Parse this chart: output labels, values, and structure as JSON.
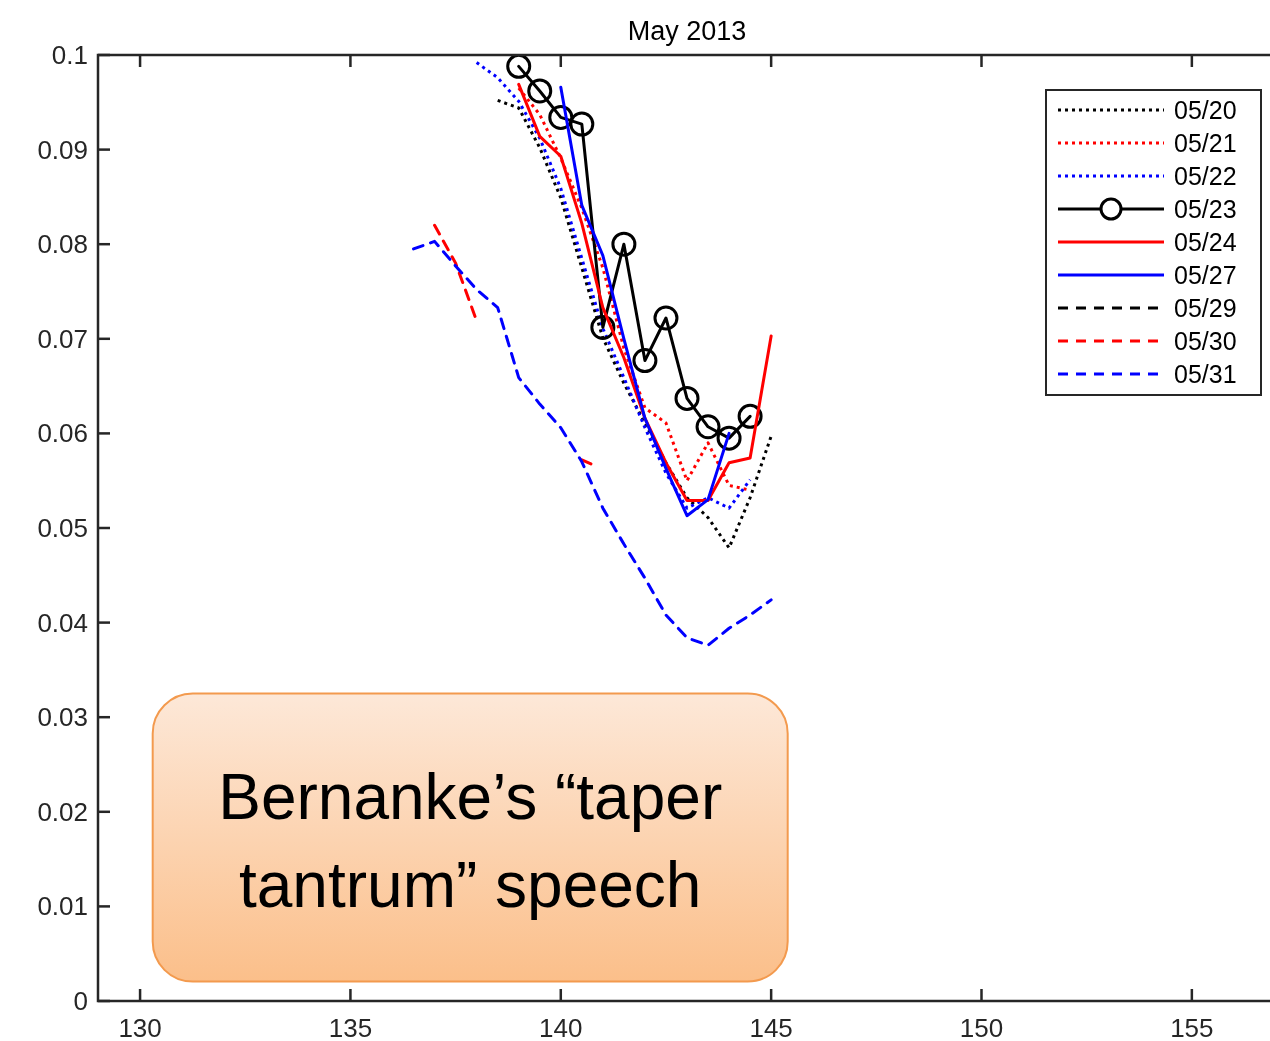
{
  "chart_data": {
    "type": "line",
    "title": "May 2013",
    "xlim": [
      129,
      157
    ],
    "ylim": [
      0,
      0.1
    ],
    "xticks": [
      130,
      135,
      140,
      145,
      150,
      155
    ],
    "yticks": [
      0,
      0.01,
      0.02,
      0.03,
      0.04,
      0.05,
      0.06,
      0.07,
      0.08,
      0.09,
      0.1
    ],
    "grid": false,
    "legend": "top right",
    "annotations": [
      "Bernanke’s “taper tantrum” speech"
    ],
    "series": [
      {
        "name": "05/20",
        "color": "#000000",
        "line_style": "dotted",
        "marker": "none",
        "x": [
          138.5,
          139,
          139.5,
          140,
          140.5,
          141,
          141.5,
          142,
          142.5,
          143,
          143.5,
          144,
          144.5,
          145
        ],
        "values": [
          0.0952,
          0.0944,
          0.0902,
          0.0849,
          0.0775,
          0.0701,
          0.0653,
          0.0611,
          0.0569,
          0.0532,
          0.0511,
          0.0479,
          0.0532,
          0.0597
        ]
      },
      {
        "name": "05/21",
        "color": "#ff0000",
        "line_style": "dotted",
        "marker": "none",
        "x": [
          139,
          139.5,
          140,
          140.5,
          141,
          141.5,
          142,
          142.5,
          143,
          143.5,
          144,
          144.5
        ],
        "values": [
          0.0965,
          0.0937,
          0.0891,
          0.0838,
          0.0775,
          0.069,
          0.0627,
          0.0611,
          0.055,
          0.059,
          0.0545,
          0.054
        ]
      },
      {
        "name": "05/22",
        "color": "#0000ff",
        "line_style": "dotted",
        "marker": "none",
        "x": [
          138,
          138.5,
          139,
          139.5,
          140,
          140.5,
          141,
          141.5,
          142,
          142.5,
          143,
          143.5,
          144,
          144.5
        ],
        "values": [
          0.0992,
          0.0976,
          0.0951,
          0.0912,
          0.0859,
          0.0785,
          0.0711,
          0.0659,
          0.0606,
          0.0558,
          0.0521,
          0.0532,
          0.0521,
          0.0551
        ]
      },
      {
        "name": "05/23",
        "color": "#000000",
        "line_style": "solid",
        "marker": "circle",
        "x": [
          139,
          139.5,
          140,
          140.5,
          141,
          141.5,
          142,
          142.5,
          143,
          143.5,
          144,
          144.5
        ],
        "values": [
          0.0988,
          0.0962,
          0.0934,
          0.0927,
          0.0712,
          0.08,
          0.0677,
          0.0722,
          0.0637,
          0.0607,
          0.0595,
          0.0618
        ]
      },
      {
        "name": "05/24",
        "color": "#ff0000",
        "line_style": "solid",
        "marker": "none",
        "x": [
          139,
          139.5,
          140,
          140.5,
          141,
          141.5,
          142,
          142.5,
          143,
          143.5,
          144,
          144.5,
          145
        ],
        "values": [
          0.0969,
          0.0914,
          0.0893,
          0.0822,
          0.0733,
          0.068,
          0.0616,
          0.0569,
          0.0529,
          0.0529,
          0.0569,
          0.0574,
          0.0703
        ]
      },
      {
        "name": "05/27",
        "color": "#0000ff",
        "line_style": "solid",
        "marker": "none",
        "x": [
          140,
          140.5,
          141,
          141.5,
          142,
          142.5,
          143,
          143.5,
          144
        ],
        "values": [
          0.0966,
          0.0841,
          0.0788,
          0.07,
          0.0616,
          0.0563,
          0.0513,
          0.053,
          0.06
        ]
      },
      {
        "name": "05/29",
        "color": "#000000",
        "line_style": "dashed",
        "marker": "none"
      },
      {
        "name": "05/30",
        "color": "#ff0000",
        "line_style": "dashed",
        "marker": "none",
        "x": [
          137,
          137.5,
          138,
          138.5,
          140.5,
          140.8
        ],
        "values": [
          0.082,
          0.078,
          0.0719,
          null,
          0.0572,
          0.0566
        ]
      },
      {
        "name": "05/31",
        "color": "#0000ff",
        "line_style": "dashed",
        "marker": "none",
        "x": [
          136.5,
          137,
          137.5,
          138,
          138.5,
          139,
          139.5,
          140,
          140.5,
          141,
          141.5,
          142,
          142.5,
          143,
          143.5,
          144,
          144.5,
          145
        ],
        "values": [
          0.0795,
          0.0803,
          0.0777,
          0.0752,
          0.0733,
          0.0659,
          0.0631,
          0.0606,
          0.057,
          0.0521,
          0.0483,
          0.0447,
          0.0408,
          0.0384,
          0.0376,
          0.0394,
          0.0408,
          0.0424
        ]
      }
    ]
  }
}
